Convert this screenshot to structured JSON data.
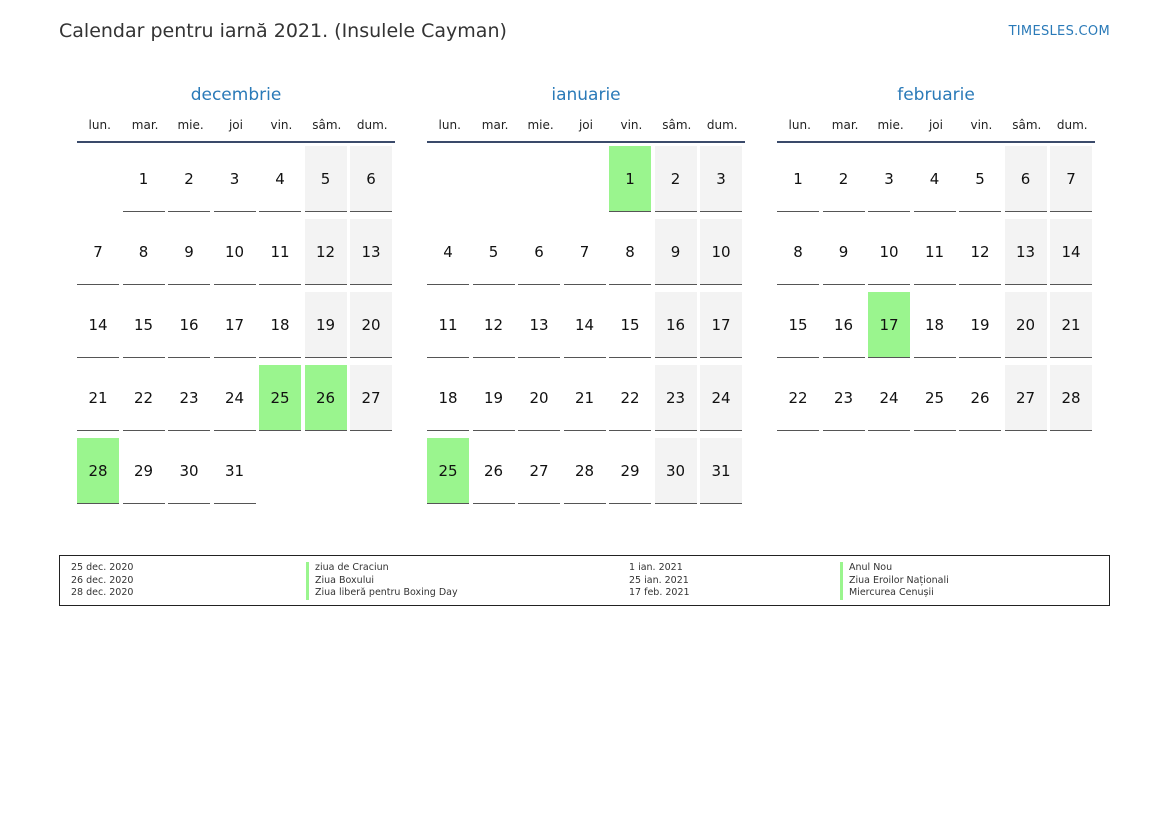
{
  "page": {
    "title": "Calendar pentru iarnă 2021. (Insulele Cayman)",
    "site": "TIMESLES.COM"
  },
  "colors": {
    "accent": "#2a7ab8",
    "holiday": "#9af58e",
    "weekend": "#f3f3f3"
  },
  "weekdays": [
    "lun.",
    "mar.",
    "mie.",
    "joi",
    "vin.",
    "sâm.",
    "dum."
  ],
  "months": [
    {
      "name": "decembrie",
      "start_weekday": 1,
      "days": 31,
      "holidays": [
        25,
        26,
        28
      ]
    },
    {
      "name": "ianuarie",
      "start_weekday": 4,
      "days": 31,
      "holidays": [
        1,
        25
      ]
    },
    {
      "name": "februarie",
      "start_weekday": 0,
      "days": 28,
      "holidays": [
        17
      ]
    }
  ],
  "legend": {
    "left": [
      {
        "date": "25 dec. 2020",
        "name": "ziua de Craciun"
      },
      {
        "date": "26 dec. 2020",
        "name": "Ziua Boxului"
      },
      {
        "date": "28 dec. 2020",
        "name": "Ziua liberă pentru Boxing Day"
      }
    ],
    "right": [
      {
        "date": "1 ian. 2021",
        "name": "Anul Nou"
      },
      {
        "date": "25 ian. 2021",
        "name": "Ziua Eroilor Naționali"
      },
      {
        "date": "17 feb. 2021",
        "name": "Miercurea Cenușii"
      }
    ]
  }
}
